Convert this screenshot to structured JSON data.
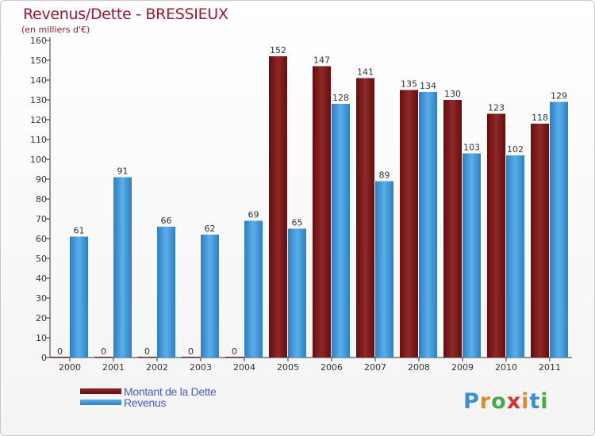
{
  "title": "Revenus/Dette - BRESSIEUX",
  "subtitle": "(en milliers d'€)",
  "colors": {
    "debt": "#6b0b0b",
    "debt_light": "#8a2a2a",
    "revenue": "#2e7fc4",
    "revenue_light": "#5aaee8",
    "title": "#a0192a"
  },
  "legend": {
    "debt_label": "Montant de la Dette",
    "revenue_label": "Revenus"
  },
  "logo": {
    "text": "Proxiti",
    "letter_colors": [
      "#3a8fd6",
      "#e68a1f",
      "#4aa84a",
      "#d62f2f",
      "#e68a1f",
      "#3a8fd6",
      "#4aa84a"
    ]
  },
  "chart_data": {
    "type": "bar",
    "categories": [
      "2000",
      "2001",
      "2002",
      "2003",
      "2004",
      "2005",
      "2006",
      "2007",
      "2008",
      "2009",
      "2010",
      "2011"
    ],
    "series": [
      {
        "name": "Montant de la Dette",
        "values": [
          0,
          0,
          0,
          0,
          0,
          152,
          147,
          141,
          135,
          130,
          123,
          118
        ]
      },
      {
        "name": "Revenus",
        "values": [
          61,
          91,
          66,
          62,
          69,
          65,
          128,
          89,
          134,
          103,
          102,
          129
        ]
      }
    ],
    "yticks": [
      0,
      10,
      20,
      30,
      40,
      50,
      60,
      70,
      80,
      90,
      100,
      110,
      120,
      130,
      140,
      150,
      160
    ],
    "ylim": [
      0,
      160
    ],
    "grid": false,
    "legend_position": "bottom-left"
  }
}
